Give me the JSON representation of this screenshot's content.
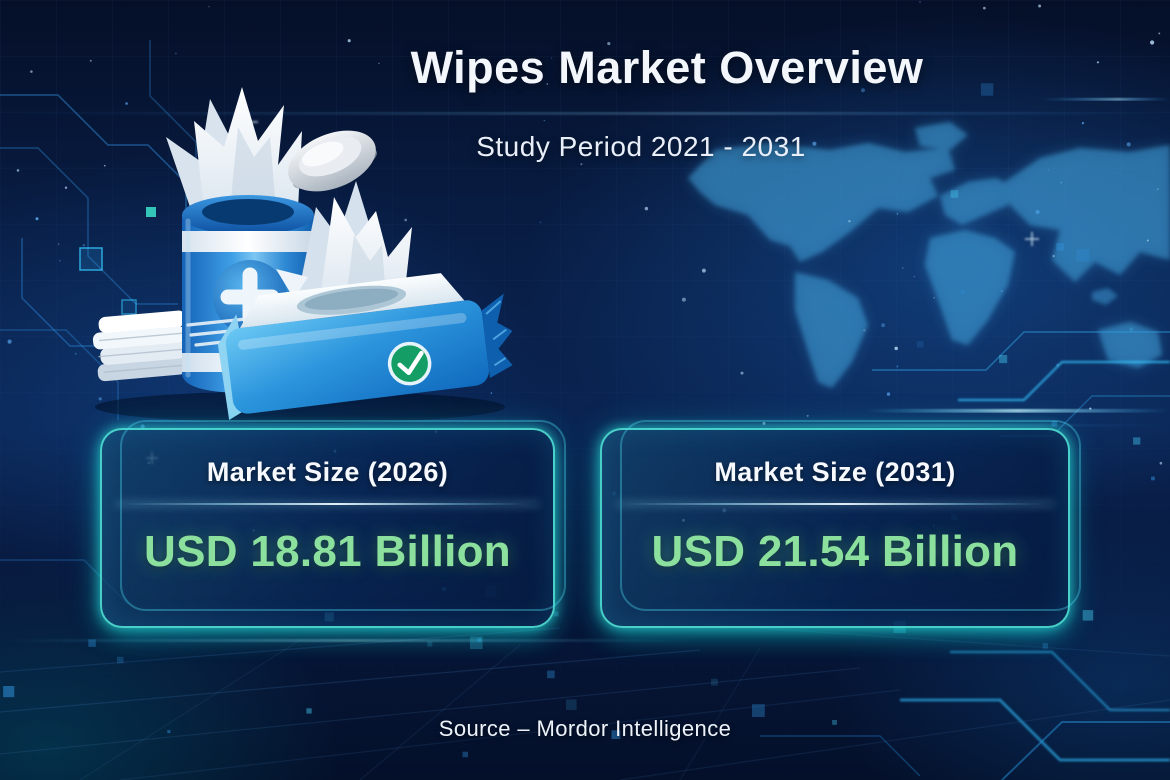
{
  "header": {
    "title": "Wipes Market Overview",
    "subtitle": "Study Period 2021 - 2031"
  },
  "stats": [
    {
      "label": "Market Size (2026)",
      "value": "USD 18.81 Billion"
    },
    {
      "label": "Market Size (2031)",
      "value": "USD 21.54 Billion"
    }
  ],
  "footer": {
    "source": "Source – Mordor Intelligence"
  },
  "colors": {
    "background_navy": "#0a2452",
    "accent_green": "#8be09e",
    "card_border_cyan": "#44dfd4",
    "map_blue": "#3f9fd8",
    "product_blue": "#2d9ae0",
    "badge_green": "#149e66",
    "text_white": "#f3f6fb"
  },
  "illustration": {
    "description": "Wet-wipes canister with medical cross, flow-pack with checkmark badge, lid and folded wipes stack",
    "badge_icons": [
      "medical-cross",
      "checkmark"
    ]
  }
}
